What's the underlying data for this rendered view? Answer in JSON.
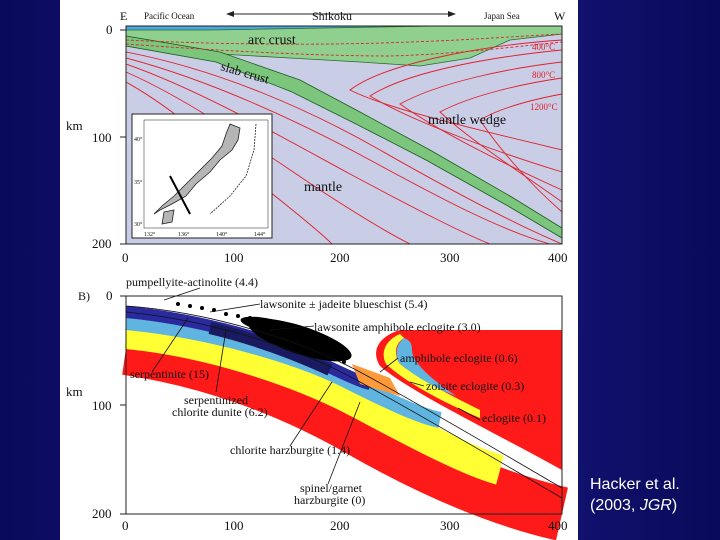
{
  "colors": {
    "slide_background": "#12127a",
    "mantle": "#c9cde6",
    "arc_crust": "#8fd08f",
    "isotherm": "#e0202a",
    "chlorite_harzburgite": "#ff1a1a",
    "serpentinized_chlorite_dunite": "#ffff33",
    "serpentinite": "#5fb4e0",
    "lawsonite_blueschist": "#2a2a9e",
    "lawsonite_amphibole_eclogite": "#1a1a60",
    "amphibole_eclogite": "#ff9a3a"
  },
  "panel_a": {
    "header_left": "E",
    "header_right": "W",
    "region_pacific": "Pacific Ocean",
    "region_shikoku": "Shikoku",
    "region_japan_sea": "Japan Sea",
    "label_arc_crust": "arc crust",
    "label_slab_crust": "slab crust",
    "label_mantle_wedge": "mantle wedge",
    "label_mantle": "mantle",
    "isotherms": [
      "400°C",
      "800°C",
      "1200°C"
    ],
    "y_ticks": [
      "0",
      "100",
      "200"
    ],
    "y_label": "km",
    "x_ticks": [
      "0",
      "100",
      "200",
      "300",
      "400"
    ],
    "inset": {
      "lat_labels": [
        "40°",
        "35°",
        "30°"
      ],
      "lon_labels": [
        "132°",
        "136°",
        "140°",
        "144°"
      ]
    }
  },
  "panel_b": {
    "label": "B)",
    "y_ticks": [
      "0",
      "100",
      "200"
    ],
    "y_label": "km",
    "x_ticks": [
      "0",
      "100",
      "200",
      "300",
      "400"
    ],
    "facies": [
      "pumpellyite-actinolite (4.4)",
      "lawsonite ± jadeite blueschist (5.4)",
      "lawsonite amphibole eclogite (3.0)",
      "amphibole eclogite (0.6)",
      "zoisite eclogite (0.3)",
      "eclogite (0.1)",
      "serpentinite (15)",
      "serpentinized",
      "chlorite dunite (6.2)",
      "chlorite harzburgite (1.4)",
      "spinel/garnet",
      "harzburgite (0)"
    ]
  },
  "citation": {
    "line1": "Hacker et al.",
    "line2_prefix": "(2003, ",
    "journal": "JGR",
    "line2_suffix": ")"
  }
}
